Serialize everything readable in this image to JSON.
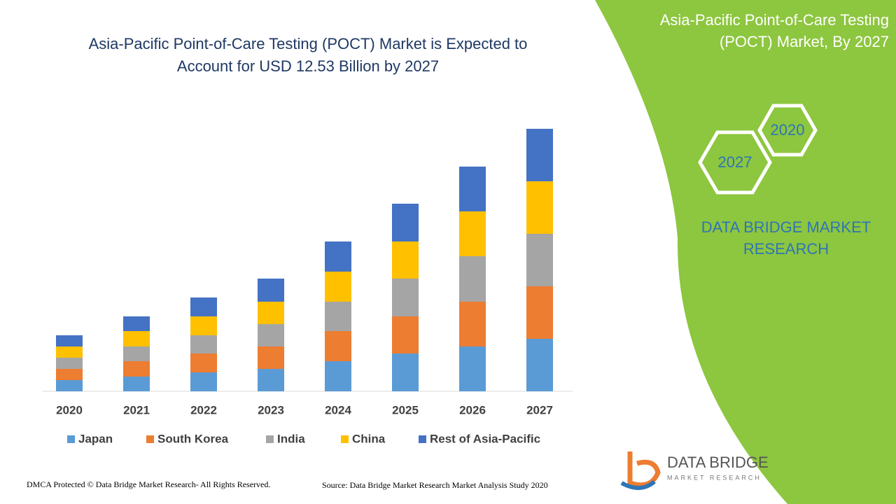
{
  "chart_data": {
    "type": "stacked_bar",
    "title": "Asia-Pacific Point-of-Care Testing (POCT) Market is Expected to Account for USD 12.53 Billion by 2027",
    "categories": [
      "2020",
      "2021",
      "2022",
      "2023",
      "2024",
      "2025",
      "2026",
      "2027"
    ],
    "series": [
      {
        "name": "Japan",
        "color": "#5b9bd5",
        "values": [
          16,
          21,
          27,
          32,
          43,
          54,
          64,
          75
        ]
      },
      {
        "name": "South Korea",
        "color": "#ed7d31",
        "values": [
          16,
          22,
          27,
          32,
          43,
          53,
          64,
          75
        ]
      },
      {
        "name": "India",
        "color": "#a5a5a5",
        "values": [
          16,
          21,
          26,
          32,
          42,
          54,
          65,
          75
        ]
      },
      {
        "name": "China",
        "color": "#ffc000",
        "values": [
          16,
          22,
          27,
          32,
          43,
          53,
          64,
          75
        ]
      },
      {
        "name": "Rest of Asia-Pacific",
        "color": "#4472c4",
        "values": [
          16,
          21,
          27,
          33,
          43,
          54,
          64,
          75
        ]
      }
    ]
  },
  "panel": {
    "title_line1": "Asia-Pacific Point-of-Care Testing",
    "title_line2": "(POCT) Market, By 2027",
    "hex_start": "2020",
    "hex_end": "2027",
    "brand_line1": "DATA BRIDGE MARKET",
    "brand_line2": "RESEARCH"
  },
  "logo": {
    "name": "DATA BRIDGE",
    "tagline": "MARKET RESEARCH"
  },
  "footer": {
    "left": "DMCA Protected © Data Bridge Market Research- All Rights Reserved.",
    "right": "Source: Data Bridge Market Research Market Analysis Study 2020"
  }
}
